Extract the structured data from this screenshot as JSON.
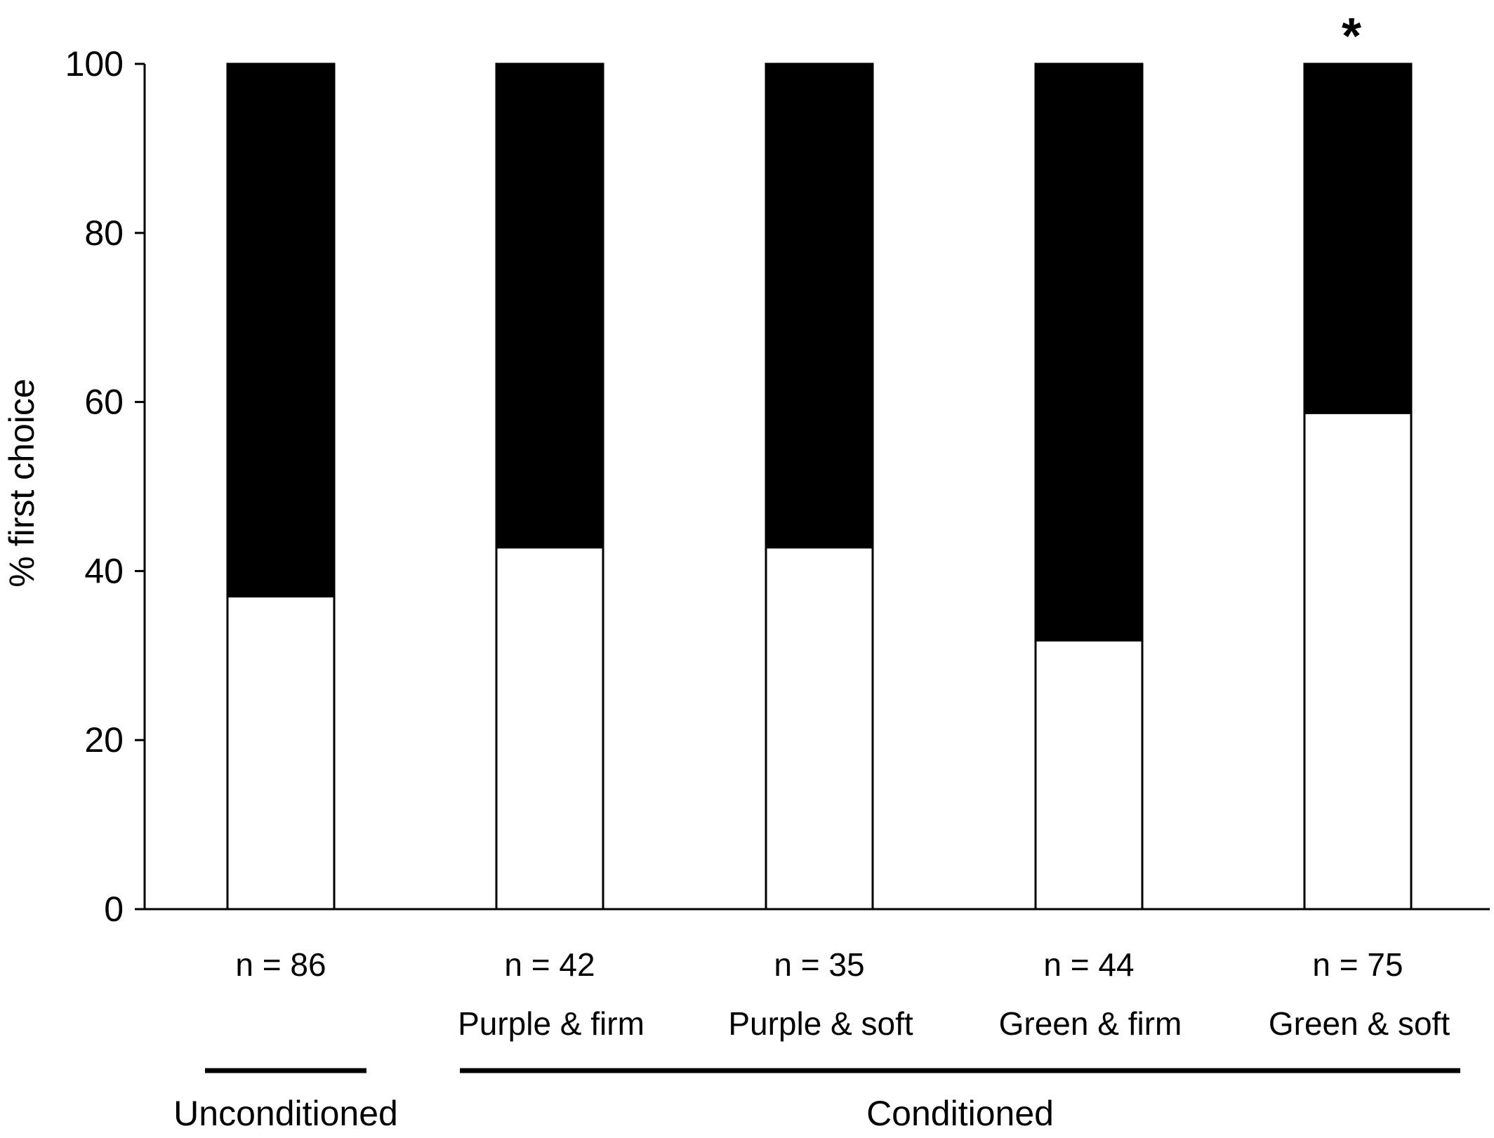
{
  "chart_data": {
    "type": "bar",
    "stacked": true,
    "title": "",
    "xlabel": "",
    "ylabel": "% first choice",
    "ylim": [
      0,
      100
    ],
    "yticks": [
      0,
      20,
      40,
      60,
      80,
      100
    ],
    "categories": [
      "",
      "Purple & firm",
      "Purple & soft",
      "Green & firm",
      "Green & soft"
    ],
    "sample_sizes": [
      "n = 86",
      "n = 42",
      "n = 35",
      "n = 44",
      "n = 75"
    ],
    "series": [
      {
        "values": [
          37,
          42.8,
          42.8,
          31.8,
          58.7
        ],
        "color": "#ffffff"
      },
      {
        "values": [
          63,
          57.2,
          57.2,
          68.2,
          41.3
        ],
        "color": "#000000"
      }
    ],
    "groups": [
      {
        "label": "Unconditioned",
        "categories": [
          0
        ]
      },
      {
        "label": "Conditioned",
        "categories": [
          1,
          2,
          3,
          4
        ]
      }
    ],
    "annotations": [
      {
        "category": 4,
        "text": "*"
      }
    ],
    "grid": false,
    "legend": "none"
  }
}
